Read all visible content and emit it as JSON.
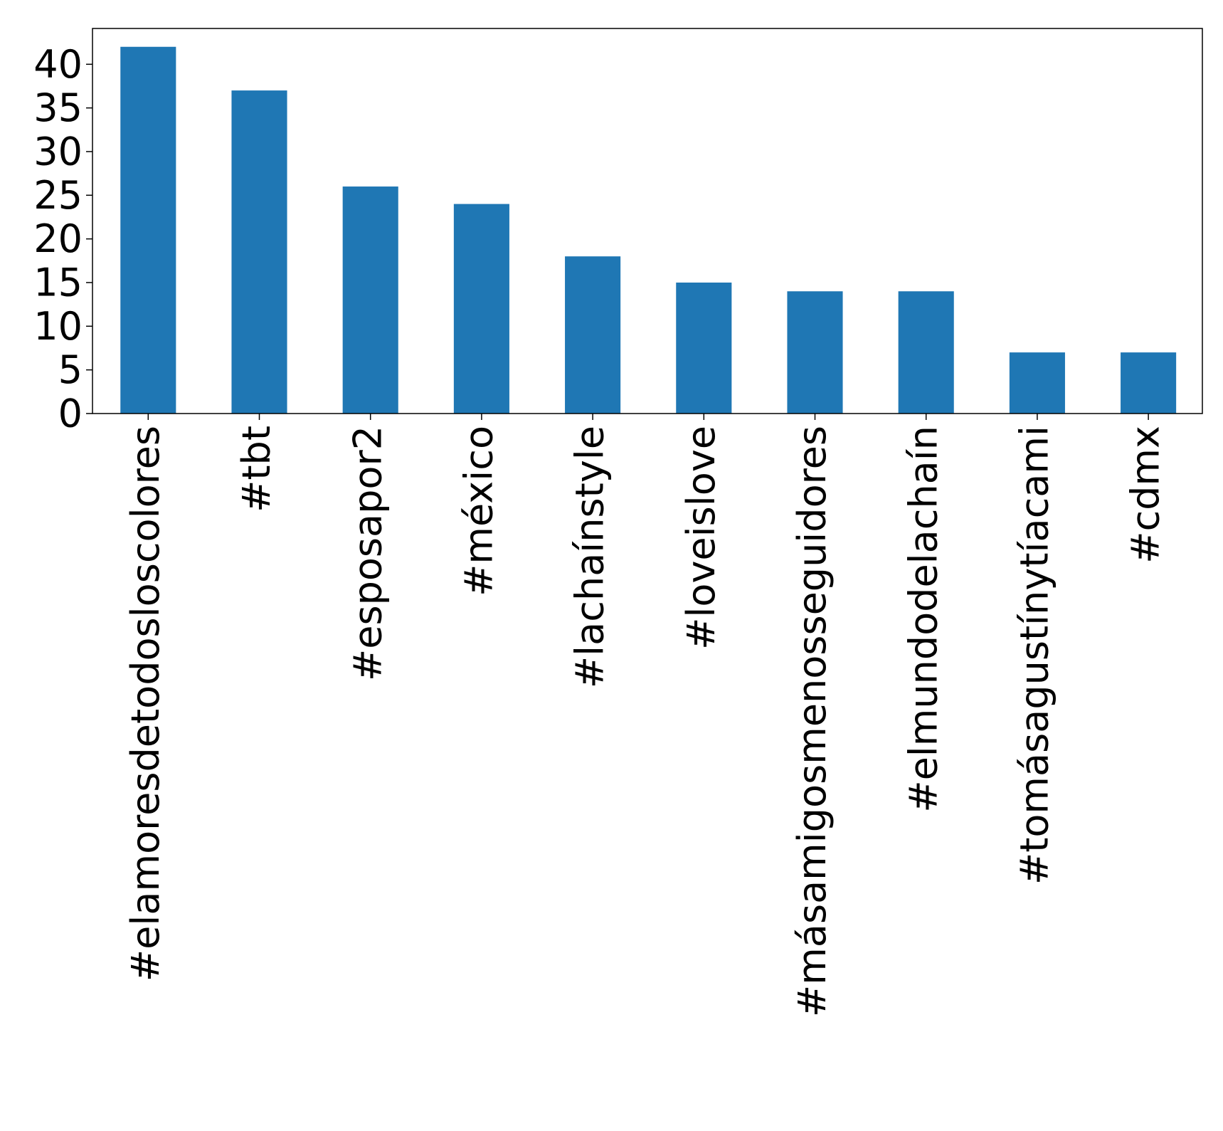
{
  "chart_data": {
    "type": "bar",
    "categories": [
      "#elamoresdetodosloscolores",
      "#tbt",
      "#esposapor2",
      "#méxico",
      "#lachaínstyle",
      "#loveislove",
      "#másamigosmenosseguidores",
      "#elmundodelachaín",
      "#tomásagustínytíacami",
      "#cdmx"
    ],
    "values": [
      42,
      37,
      26,
      24,
      18,
      15,
      14,
      14,
      7,
      7
    ],
    "yticks": [
      "0",
      "5",
      "10",
      "15",
      "20",
      "25",
      "30",
      "35",
      "40"
    ],
    "ylim": [
      0,
      44.1
    ],
    "title": "",
    "xlabel": "",
    "ylabel": "",
    "bar_color": "#1f77b4",
    "grid": false,
    "legend": false
  }
}
